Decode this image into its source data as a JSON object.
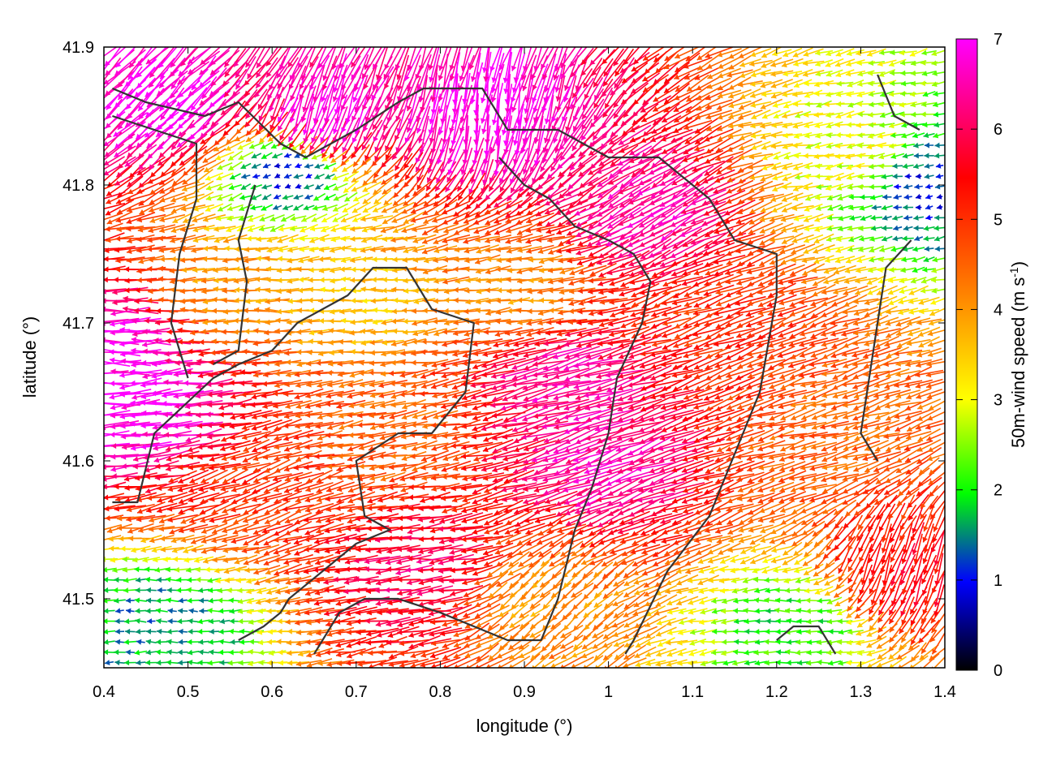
{
  "chart_data": {
    "type": "vector-field",
    "xlabel": "longitude (°)",
    "ylabel": "latitude (°)",
    "xlim": [
      0.4,
      1.4
    ],
    "ylim": [
      41.45,
      41.9
    ],
    "xticks": [
      "0.4",
      "0.5",
      "0.6",
      "0.7",
      "0.8",
      "0.9",
      "1",
      "1.1",
      "1.2",
      "1.3",
      "1.4"
    ],
    "yticks": [
      "41.5",
      "41.6",
      "41.7",
      "41.8",
      "41.9"
    ],
    "colorbar": {
      "label": "50m-wind speed (m s",
      "label_sup": "-1",
      "label_end": ")",
      "range": [
        0,
        7
      ],
      "ticks": [
        "0",
        "1",
        "2",
        "3",
        "4",
        "5",
        "6",
        "7"
      ],
      "colors": [
        "#000000",
        "#0000ff",
        "#00ff00",
        "#ffff00",
        "#ff8000",
        "#ff0000",
        "#ff00ff"
      ]
    },
    "wind_regions": [
      {
        "lon": 0.42,
        "lat": 41.68,
        "speed": 7.0,
        "dir": 180
      },
      {
        "lon": 0.45,
        "lat": 41.64,
        "speed": 7.0,
        "dir": 185
      },
      {
        "lon": 0.48,
        "lat": 41.86,
        "speed": 7.0,
        "dir": 225
      },
      {
        "lon": 0.55,
        "lat": 41.72,
        "speed": 4.0,
        "dir": 180
      },
      {
        "lon": 0.58,
        "lat": 41.58,
        "speed": 5.0,
        "dir": 200
      },
      {
        "lon": 0.66,
        "lat": 41.85,
        "speed": 7.0,
        "dir": 250
      },
      {
        "lon": 0.7,
        "lat": 41.72,
        "speed": 3.5,
        "dir": 180
      },
      {
        "lon": 0.75,
        "lat": 41.62,
        "speed": 4.5,
        "dir": 190
      },
      {
        "lon": 0.78,
        "lat": 41.52,
        "speed": 6.0,
        "dir": 185
      },
      {
        "lon": 0.85,
        "lat": 41.85,
        "speed": 7.0,
        "dir": 260
      },
      {
        "lon": 0.9,
        "lat": 41.72,
        "speed": 4.0,
        "dir": 185
      },
      {
        "lon": 0.95,
        "lat": 41.66,
        "speed": 6.5,
        "dir": 195
      },
      {
        "lon": 1.0,
        "lat": 41.6,
        "speed": 6.5,
        "dir": 200
      },
      {
        "lon": 1.05,
        "lat": 41.78,
        "speed": 6.5,
        "dir": 210
      },
      {
        "lon": 1.15,
        "lat": 41.7,
        "speed": 5.0,
        "dir": 200
      },
      {
        "lon": 1.25,
        "lat": 41.62,
        "speed": 4.5,
        "dir": 195
      },
      {
        "lon": 1.3,
        "lat": 41.82,
        "speed": 3.0,
        "dir": 190
      },
      {
        "lon": 1.22,
        "lat": 41.48,
        "speed": 2.0,
        "dir": 180
      },
      {
        "lon": 0.47,
        "lat": 41.48,
        "speed": 1.5,
        "dir": 180
      },
      {
        "lon": 0.62,
        "lat": 41.81,
        "speed": 1.0,
        "dir": 200
      },
      {
        "lon": 1.37,
        "lat": 41.8,
        "speed": 1.0,
        "dir": 190
      },
      {
        "lon": 0.92,
        "lat": 41.5,
        "speed": 4.0,
        "dir": 220
      },
      {
        "lon": 1.35,
        "lat": 41.52,
        "speed": 5.5,
        "dir": 250
      }
    ],
    "contour_lines": [
      [
        [
          0.41,
          41.87
        ],
        [
          0.45,
          41.86
        ],
        [
          0.52,
          41.85
        ],
        [
          0.56,
          41.86
        ],
        [
          0.61,
          41.83
        ],
        [
          0.64,
          41.82
        ],
        [
          0.7,
          41.84
        ],
        [
          0.75,
          41.86
        ],
        [
          0.78,
          41.87
        ],
        [
          0.85,
          41.87
        ],
        [
          0.88,
          41.84
        ],
        [
          0.94,
          41.84
        ],
        [
          1.0,
          41.82
        ],
        [
          1.06,
          41.82
        ],
        [
          1.12,
          41.79
        ],
        [
          1.15,
          41.76
        ],
        [
          1.2,
          41.75
        ],
        [
          1.2,
          41.72
        ],
        [
          1.18,
          41.65
        ],
        [
          1.16,
          41.62
        ],
        [
          1.12,
          41.56
        ],
        [
          1.07,
          41.52
        ],
        [
          1.03,
          41.47
        ],
        [
          1.02,
          41.46
        ]
      ],
      [
        [
          0.41,
          41.85
        ],
        [
          0.46,
          41.84
        ],
        [
          0.51,
          41.83
        ],
        [
          0.51,
          41.79
        ],
        [
          0.49,
          41.75
        ],
        [
          0.48,
          41.7
        ],
        [
          0.5,
          41.66
        ]
      ],
      [
        [
          0.41,
          41.57
        ],
        [
          0.44,
          41.57
        ],
        [
          0.46,
          41.62
        ],
        [
          0.53,
          41.66
        ],
        [
          0.56,
          41.67
        ],
        [
          0.6,
          41.68
        ],
        [
          0.63,
          41.7
        ],
        [
          0.66,
          41.71
        ],
        [
          0.69,
          41.72
        ],
        [
          0.72,
          41.74
        ],
        [
          0.76,
          41.74
        ],
        [
          0.79,
          41.71
        ],
        [
          0.84,
          41.7
        ],
        [
          0.83,
          41.65
        ],
        [
          0.79,
          41.62
        ],
        [
          0.75,
          41.62
        ],
        [
          0.7,
          41.6
        ],
        [
          0.71,
          41.56
        ],
        [
          0.74,
          41.55
        ],
        [
          0.7,
          41.54
        ],
        [
          0.66,
          41.52
        ],
        [
          0.62,
          41.5
        ],
        [
          0.61,
          41.49
        ],
        [
          0.59,
          41.48
        ],
        [
          0.56,
          41.47
        ]
      ],
      [
        [
          0.58,
          41.8
        ],
        [
          0.56,
          41.76
        ],
        [
          0.57,
          41.73
        ],
        [
          0.56,
          41.68
        ],
        [
          0.53,
          41.67
        ]
      ],
      [
        [
          0.65,
          41.46
        ],
        [
          0.68,
          41.49
        ],
        [
          0.71,
          41.5
        ],
        [
          0.75,
          41.5
        ],
        [
          0.8,
          41.49
        ],
        [
          0.84,
          41.48
        ],
        [
          0.88,
          41.47
        ],
        [
          0.92,
          41.47
        ],
        [
          0.94,
          41.5
        ],
        [
          0.96,
          41.55
        ],
        [
          0.98,
          41.58
        ],
        [
          1.0,
          41.62
        ],
        [
          1.01,
          41.66
        ],
        [
          1.04,
          41.7
        ],
        [
          1.05,
          41.73
        ],
        [
          1.03,
          41.75
        ],
        [
          1.0,
          41.76
        ],
        [
          0.96,
          41.77
        ],
        [
          0.93,
          41.79
        ],
        [
          0.9,
          41.8
        ],
        [
          0.87,
          41.82
        ]
      ],
      [
        [
          1.27,
          41.46
        ],
        [
          1.25,
          41.48
        ],
        [
          1.22,
          41.48
        ],
        [
          1.2,
          41.47
        ]
      ],
      [
        [
          1.32,
          41.88
        ],
        [
          1.34,
          41.85
        ],
        [
          1.37,
          41.84
        ]
      ],
      [
        [
          1.32,
          41.6
        ],
        [
          1.3,
          41.62
        ],
        [
          1.31,
          41.66
        ],
        [
          1.32,
          41.7
        ],
        [
          1.33,
          41.74
        ],
        [
          1.36,
          41.76
        ]
      ]
    ]
  }
}
